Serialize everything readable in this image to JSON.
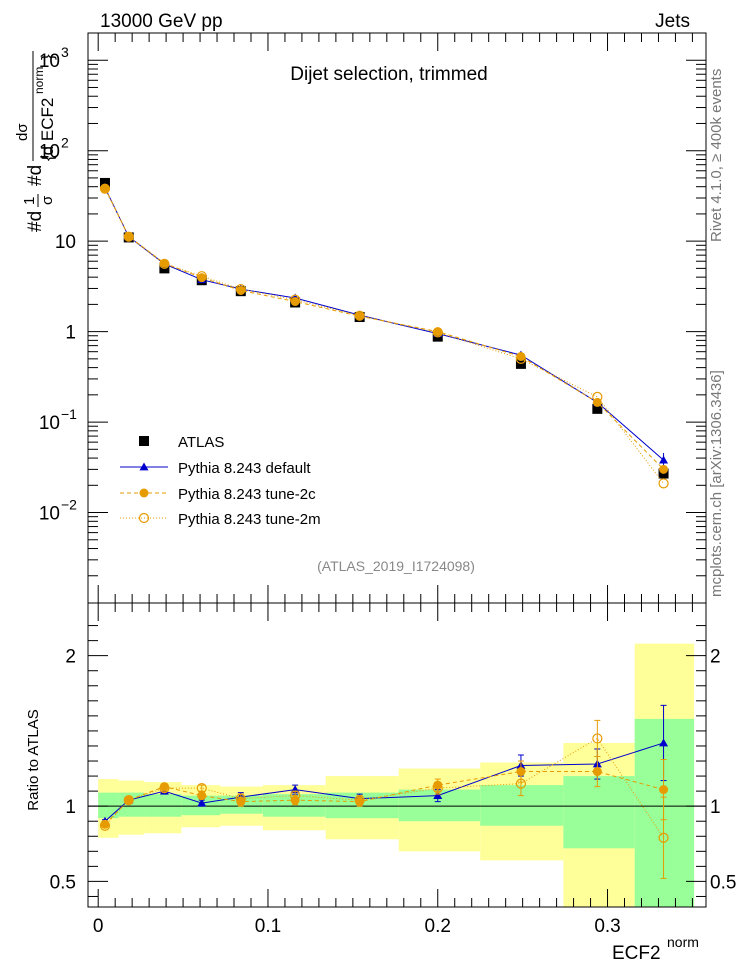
{
  "header": {
    "left": "13000 GeV pp",
    "right": "Jets",
    "side_top": "Rivet 4.1.0, ≥ 400k events",
    "side_bottom": "mcplots.cern.ch [arXiv:1306.3436]"
  },
  "chart_data": [
    {
      "type": "scatter",
      "title": "Dijet selection, trimmed",
      "watermark": "(ATLAS_2019_I1724098)",
      "xlabel": "ECF2",
      "xlabel_sup": "norm",
      "ylabel": "#d1/σ #d dσ / {d ECF2norm}",
      "yscale": "log",
      "ylim": [
        0.001,
        2000
      ],
      "xlim": [
        -0.006,
        0.358
      ],
      "y_ticks": [
        {
          "value": 1000,
          "label": "10",
          "sup": "3"
        },
        {
          "value": 100,
          "label": "10",
          "sup": "2"
        },
        {
          "value": 10,
          "label": "10",
          "sup": ""
        },
        {
          "value": 1,
          "label": "1",
          "sup": ""
        },
        {
          "value": 0.1,
          "label": "10",
          "sup": "−1"
        },
        {
          "value": 0.01,
          "label": "10",
          "sup": "−2"
        }
      ],
      "legend": [
        {
          "label": "ATLAS",
          "color": "#000000",
          "marker": "square"
        },
        {
          "label": "Pythia 8.243 default",
          "color": "#0000cc",
          "marker": "triangle"
        },
        {
          "label": "Pythia 8.243 tune-2c",
          "color": "#e69b00",
          "marker": "circle"
        },
        {
          "label": "Pythia 8.243 tune-2m",
          "color": "#e69b00",
          "marker": "open-circle"
        }
      ],
      "x": [
        0.004,
        0.018,
        0.039,
        0.061,
        0.084,
        0.116,
        0.154,
        0.2,
        0.249,
        0.294,
        0.333
      ],
      "series": [
        {
          "name": "ATLAS",
          "values": [
            44,
            11,
            5.0,
            3.7,
            2.8,
            2.1,
            1.45,
            0.88,
            0.44,
            0.14,
            0.027
          ]
        },
        {
          "name": "Pythia 8.243 default",
          "values": [
            39,
            11.2,
            5.6,
            3.75,
            2.95,
            2.35,
            1.52,
            0.95,
            0.55,
            0.165,
            0.038
          ],
          "err_rel": [
            0.02,
            0.02,
            0.03,
            0.03,
            0.04,
            0.04,
            0.04,
            0.05,
            0.07,
            0.1,
            0.2
          ]
        },
        {
          "name": "Pythia 8.243 tune-2c",
          "values": [
            38.5,
            11.3,
            5.7,
            3.95,
            2.85,
            2.15,
            1.48,
            1.0,
            0.53,
            0.165,
            0.03
          ]
        },
        {
          "name": "Pythia 8.243 tune-2m",
          "values": [
            38,
            11.2,
            5.6,
            4.1,
            2.95,
            2.25,
            1.5,
            0.98,
            0.5,
            0.19,
            0.021
          ]
        }
      ]
    },
    {
      "type": "scatter",
      "ylabel": "Ratio to ATLAS",
      "ylim": [
        0.33,
        2.35
      ],
      "y_ticks": [
        0.5,
        1,
        2
      ],
      "x_ticks": [
        0,
        0.1,
        0.2,
        0.3
      ],
      "x_tick_labels": [
        "0",
        "0.1",
        "0.2",
        "0.3"
      ],
      "band_colors": {
        "inner": "#99ff99",
        "outer": "#ffff99"
      },
      "bands": [
        {
          "x0": 0.0,
          "x1": 0.012,
          "in_lo": 0.92,
          "in_hi": 1.09,
          "out_lo": 0.79,
          "out_hi": 1.18
        },
        {
          "x0": 0.012,
          "x1": 0.027,
          "in_lo": 0.93,
          "in_hi": 1.09,
          "out_lo": 0.81,
          "out_hi": 1.17
        },
        {
          "x0": 0.027,
          "x1": 0.049,
          "in_lo": 0.93,
          "in_hi": 1.08,
          "out_lo": 0.82,
          "out_hi": 1.16
        },
        {
          "x0": 0.049,
          "x1": 0.072,
          "in_lo": 0.94,
          "in_hi": 1.07,
          "out_lo": 0.86,
          "out_hi": 1.14
        },
        {
          "x0": 0.072,
          "x1": 0.097,
          "in_lo": 0.95,
          "in_hi": 1.07,
          "out_lo": 0.87,
          "out_hi": 1.13
        },
        {
          "x0": 0.097,
          "x1": 0.134,
          "in_lo": 0.93,
          "in_hi": 1.08,
          "out_lo": 0.84,
          "out_hi": 1.14
        },
        {
          "x0": 0.134,
          "x1": 0.177,
          "in_lo": 0.92,
          "in_hi": 1.09,
          "out_lo": 0.78,
          "out_hi": 1.2
        },
        {
          "x0": 0.177,
          "x1": 0.225,
          "in_lo": 0.9,
          "in_hi": 1.11,
          "out_lo": 0.7,
          "out_hi": 1.25
        },
        {
          "x0": 0.225,
          "x1": 0.274,
          "in_lo": 0.87,
          "in_hi": 1.14,
          "out_lo": 0.64,
          "out_hi": 1.29
        },
        {
          "x0": 0.274,
          "x1": 0.316,
          "in_lo": 0.72,
          "in_hi": 1.2,
          "out_lo": 0.33,
          "out_hi": 1.42
        },
        {
          "x0": 0.316,
          "x1": 0.351,
          "in_lo": 0.33,
          "in_hi": 1.58,
          "out_lo": 0.33,
          "out_hi": 2.08
        }
      ],
      "series": [
        {
          "name": "Pythia 8.243 default",
          "values": [
            0.9,
            1.04,
            1.1,
            1.02,
            1.06,
            1.11,
            1.05,
            1.07,
            1.27,
            1.28,
            1.42
          ],
          "err": [
            0.01,
            0.01,
            0.02,
            0.02,
            0.03,
            0.03,
            0.03,
            0.04,
            0.07,
            0.1,
            0.25
          ]
        },
        {
          "name": "Pythia 8.243 tune-2c",
          "values": [
            0.88,
            1.04,
            1.13,
            1.07,
            1.03,
            1.04,
            1.03,
            1.14,
            1.23,
            1.23,
            1.11
          ],
          "err": [
            0.01,
            0.01,
            0.02,
            0.02,
            0.03,
            0.03,
            0.03,
            0.04,
            0.07,
            0.1,
            0.2
          ]
        },
        {
          "name": "Pythia 8.243 tune-2m",
          "values": [
            0.87,
            1.04,
            1.12,
            1.12,
            1.05,
            1.07,
            1.04,
            1.12,
            1.15,
            1.45,
            0.79
          ],
          "err": [
            0.01,
            0.01,
            0.02,
            0.02,
            0.03,
            0.03,
            0.03,
            0.04,
            0.08,
            0.12,
            0.27
          ]
        }
      ]
    }
  ]
}
